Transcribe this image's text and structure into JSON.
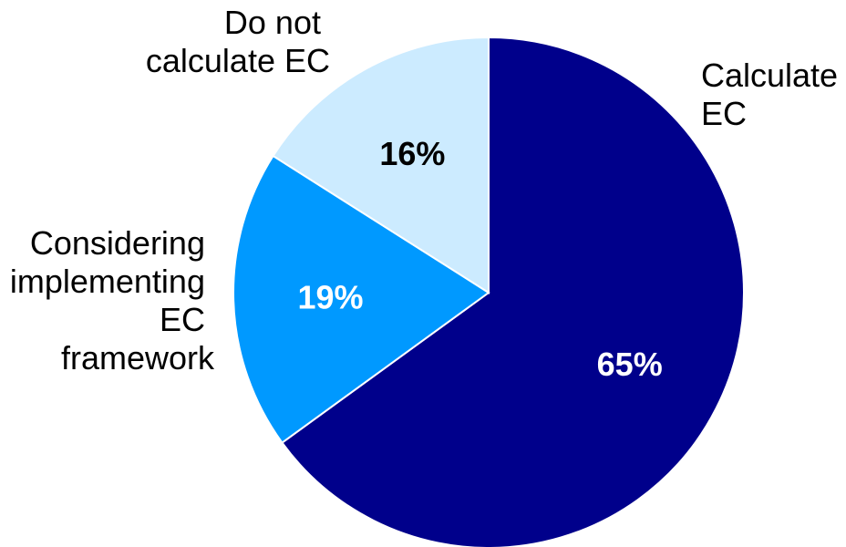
{
  "chart_data": {
    "type": "pie",
    "slices": [
      {
        "label": [
          "Calculate",
          "EC"
        ],
        "value": 65,
        "value_label": "65%",
        "color": "#00008B",
        "text_color": "#ffffff"
      },
      {
        "label": [
          "Considering",
          "implementing",
          "EC",
          "framework"
        ],
        "value": 19,
        "value_label": "19%",
        "color": "#0099FF",
        "text_color": "#ffffff"
      },
      {
        "label": [
          "Do not",
          "calculate EC"
        ],
        "value": 16,
        "value_label": "16%",
        "color": "#CCEBFF",
        "text_color": "#000000"
      }
    ],
    "start": "12 o'clock",
    "direction": "clockwise",
    "legend": "none"
  }
}
